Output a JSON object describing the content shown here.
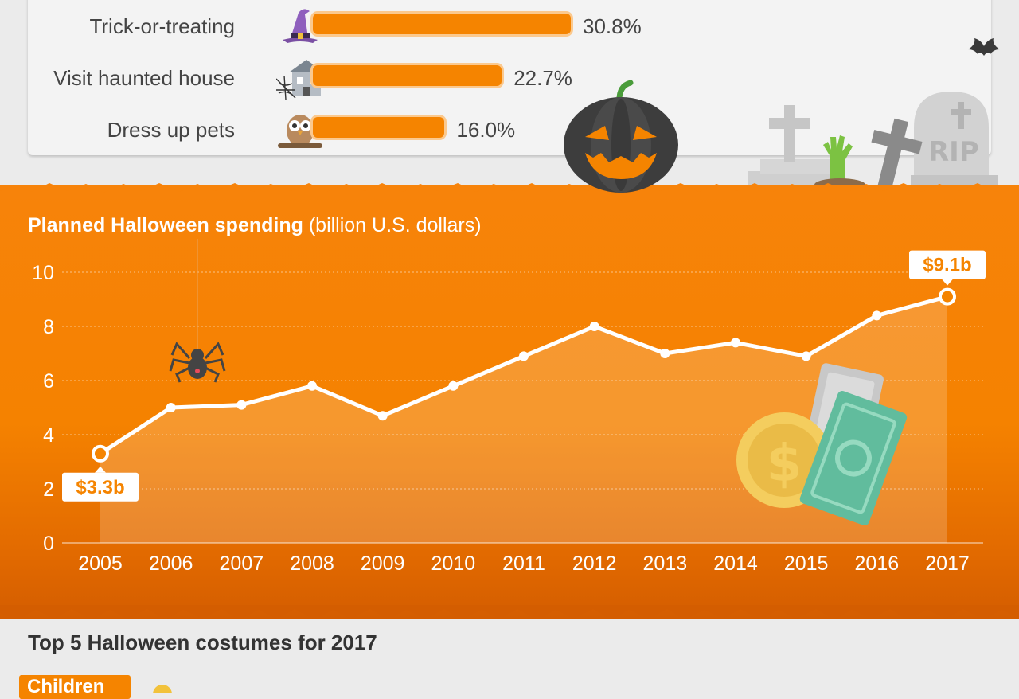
{
  "activities": [
    {
      "label": "Trick-or-treating",
      "value_text": "30.8%",
      "percent": 30.8,
      "icon": "witch-hat-icon"
    },
    {
      "label": "Visit haunted house",
      "value_text": "22.7%",
      "percent": 22.7,
      "icon": "haunted-house-icon"
    },
    {
      "label": "Dress up pets",
      "value_text": "16.0%",
      "percent": 16.0,
      "icon": "owl-icon"
    }
  ],
  "chart_title_bold": "Planned Halloween spending",
  "chart_title_rest": " (billion U.S. dollars)",
  "chart_data": {
    "type": "area",
    "title": "Planned Halloween spending (billion U.S. dollars)",
    "x": [
      "2005",
      "2006",
      "2007",
      "2008",
      "2009",
      "2010",
      "2011",
      "2012",
      "2013",
      "2014",
      "2015",
      "2016",
      "2017"
    ],
    "values": [
      3.3,
      5.0,
      5.1,
      5.8,
      4.7,
      5.8,
      6.9,
      8.0,
      7.0,
      7.4,
      6.9,
      8.4,
      9.1
    ],
    "ylim": [
      0,
      10
    ],
    "yticks": [
      0,
      2,
      4,
      6,
      8,
      10
    ],
    "annotations": [
      {
        "x": "2005",
        "text": "$3.3b"
      },
      {
        "x": "2017",
        "text": "$9.1b"
      }
    ],
    "grid": true
  },
  "bottom_title": "Top 5 Halloween costumes for 2017",
  "children_tag": "Children",
  "colors": {
    "accent": "#f58400",
    "background": "#ebebeb",
    "line": "#ffffff"
  }
}
